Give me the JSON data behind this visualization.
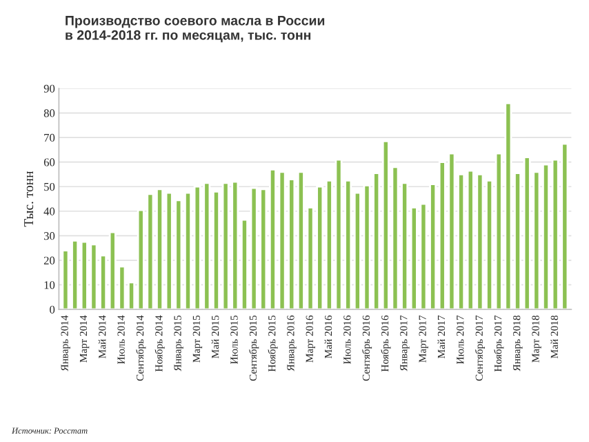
{
  "chart_data": {
    "type": "bar",
    "title": "Производство соевого масла в России\nв 2014-2018 гг. по месяцам, тыс. тонн",
    "ylabel": "Тыс. тонн",
    "annotations": [
      "Источник: Росстат"
    ],
    "categories": [
      "Январь 2014",
      null,
      "Март 2014",
      null,
      "Май 2014",
      null,
      "Июль 2014",
      null,
      "Сентябрь 2014",
      null,
      "Ноябрь 2014",
      null,
      "Январь 2015",
      null,
      "Март 2015",
      null,
      "Май 2015",
      null,
      "Июль 2015",
      null,
      "Сентябрь 2015",
      null,
      "Ноябрь 2015",
      null,
      "Январь 2016",
      null,
      "Март 2016",
      null,
      "Май 2016",
      null,
      "Июль 2016",
      null,
      "Сентябрь 2016",
      null,
      "Ноябрь 2016",
      null,
      "Январь 2017",
      null,
      "Март 2017",
      null,
      "Май 2017",
      null,
      "Июль 2017",
      null,
      "Сентябрь 2017",
      null,
      "Ноябрь 2017",
      null,
      "Январь 2018",
      null,
      "Март 2018",
      null,
      "Май 2018",
      null
    ],
    "values": [
      24,
      28,
      27.5,
      26.5,
      22,
      31.5,
      17.5,
      11,
      40.5,
      47,
      49,
      47.5,
      44.5,
      47.5,
      50,
      51.5,
      48,
      51.5,
      52,
      36.5,
      49.5,
      49,
      57,
      56,
      53,
      56,
      41.5,
      50,
      52.5,
      61,
      52.5,
      47.5,
      50.5,
      55.5,
      68.5,
      58,
      51.5,
      41.5,
      43,
      51,
      60,
      63.5,
      55,
      56.5,
      55,
      52.5,
      63.5,
      84,
      55.5,
      62,
      56,
      59,
      61,
      67.5
    ],
    "color": "#8cc152",
    "ylim": [
      0,
      90
    ],
    "yticks": [
      0,
      10,
      20,
      30,
      40,
      50,
      60,
      70,
      80,
      90
    ],
    "grid": "y"
  }
}
